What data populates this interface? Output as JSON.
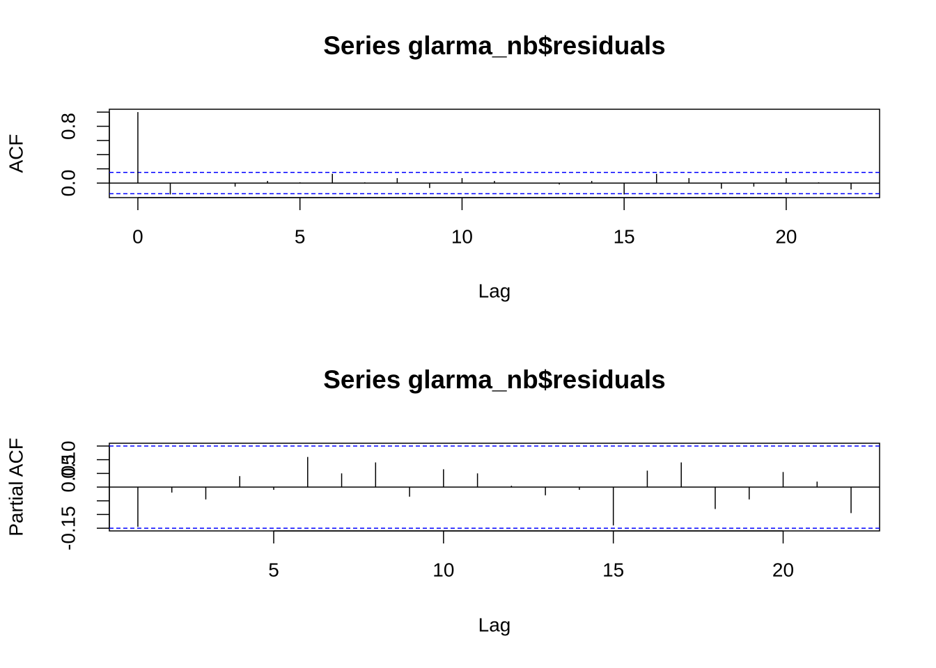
{
  "chart_data": [
    {
      "type": "acf",
      "title": "Series  glarma_nb$residuals",
      "xlabel": "Lag",
      "ylabel": "ACF",
      "x": [
        0,
        1,
        2,
        3,
        4,
        5,
        6,
        7,
        8,
        9,
        10,
        11,
        12,
        13,
        14,
        15,
        16,
        17,
        18,
        19,
        20,
        21,
        22
      ],
      "values": [
        1,
        -0.16,
        0.005,
        -0.05,
        0.03,
        0.01,
        0.13,
        0.01,
        0.07,
        -0.07,
        0.07,
        0.03,
        0.005,
        -0.02,
        0.03,
        -0.16,
        0.13,
        0.07,
        -0.08,
        -0.05,
        0.07,
        0.01,
        -0.09
      ],
      "color": "#000000",
      "ci": 0.15,
      "ci_color": "#0000ff",
      "xlim": [
        -0.88,
        22.88
      ],
      "xticks": [
        0,
        5,
        10,
        15,
        20
      ],
      "ylim": [
        -0.205,
        1.04
      ],
      "yticks": [
        {
          "value": 0,
          "label": "0.0"
        },
        {
          "value": 0.8,
          "label": "0.8"
        }
      ],
      "yticks_minor": [
        0.2,
        0.4,
        0.6,
        1.0
      ]
    },
    {
      "type": "acf",
      "title": "Series  glarma_nb$residuals",
      "xlabel": "Lag",
      "ylabel": "Partial ACF",
      "x": [
        1,
        2,
        3,
        4,
        5,
        6,
        7,
        8,
        9,
        10,
        11,
        12,
        13,
        14,
        15,
        16,
        17,
        18,
        19,
        20,
        21,
        22
      ],
      "values": [
        -0.145,
        -0.02,
        -0.045,
        0.04,
        -0.01,
        0.11,
        0.05,
        0.09,
        -0.035,
        0.065,
        0.05,
        0.005,
        -0.03,
        -0.01,
        -0.14,
        0.06,
        0.09,
        -0.08,
        -0.045,
        0.055,
        0.02,
        -0.095
      ],
      "color": "#000000",
      "ci": 0.15,
      "ci_color": "#0000ff",
      "xlim": [
        0.16,
        22.84
      ],
      "xticks": [
        5,
        10,
        15,
        20
      ],
      "ylim": [
        -0.16,
        0.16
      ],
      "yticks": [
        {
          "value": -0.15,
          "label": "-0.15"
        },
        {
          "value": 0.05,
          "label": "0.05"
        },
        {
          "value": 0.1,
          "label": "0.10"
        }
      ],
      "yticks_minor": [
        -0.1,
        -0.05,
        0,
        0.15
      ]
    }
  ]
}
